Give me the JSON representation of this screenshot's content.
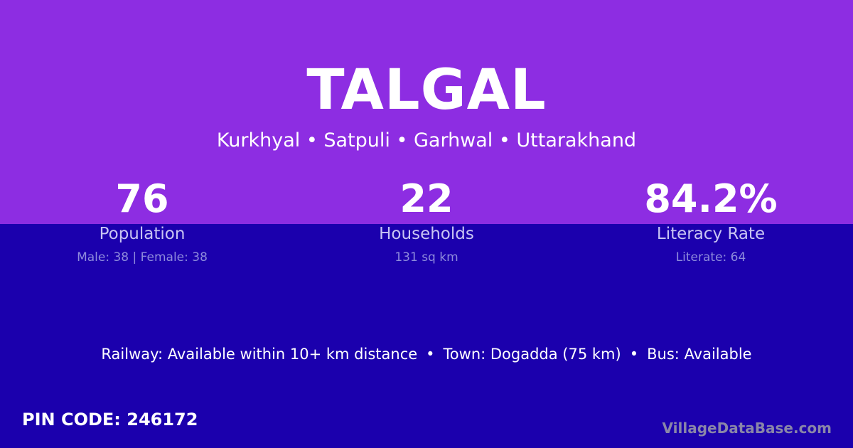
{
  "title": "TALGAL",
  "location": "Kurkhyal • Satpuli • Garhwal • Uttarakhand",
  "stats": [
    {
      "value": "76",
      "label": "Population",
      "detail": "Male: 38 | Female: 38"
    },
    {
      "value": "22",
      "label": "Households",
      "detail": "131 sq km"
    },
    {
      "value": "84.2%",
      "label": "Literacy Rate",
      "detail": "Literate: 64"
    }
  ],
  "info": {
    "railway": "Railway: Available within 10+ km distance",
    "town": "Town: Dogadda (75 km)",
    "bus": "Bus: Available",
    "separator": "•"
  },
  "pin": "PIN CODE: 246172",
  "brand": "VillageDataBase.com",
  "colors": {
    "top": "#8d2de2",
    "bottom": "#1b00ad"
  }
}
